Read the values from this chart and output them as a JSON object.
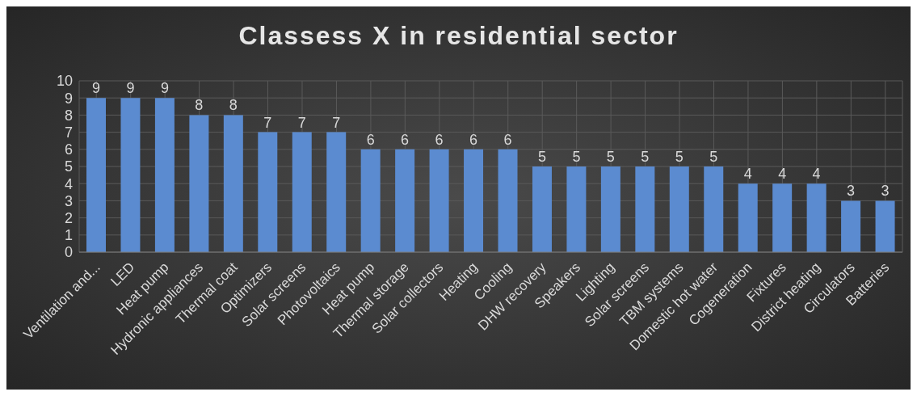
{
  "chart_data": {
    "type": "bar",
    "title": "Classess X in residential sector",
    "categories": [
      "Ventilation and...",
      "LED",
      "Heat pump",
      "Hydronic appliances",
      "Thermal coat",
      "Optimizers",
      "Solar screens",
      "Photovoltaics",
      "Heat pump",
      "Thermal storage",
      "Solar collectors",
      "Heating",
      "Cooling",
      "DHW recovery",
      "Speakers",
      "Lighting",
      "Solar screens",
      "TBM systems",
      "Domestic hot water",
      "Cogeneration",
      "Fixtures",
      "District heating",
      "Circulators",
      "Batteries"
    ],
    "values": [
      9,
      9,
      9,
      8,
      8,
      7,
      7,
      7,
      6,
      6,
      6,
      6,
      6,
      5,
      5,
      5,
      5,
      5,
      5,
      4,
      4,
      4,
      3,
      3
    ],
    "color": "#5b8bd0",
    "ylim": [
      0,
      10
    ],
    "yticks": [
      0,
      1,
      2,
      3,
      4,
      5,
      6,
      7,
      8,
      9,
      10
    ],
    "grid": true,
    "data_labels": true,
    "legend": false
  }
}
